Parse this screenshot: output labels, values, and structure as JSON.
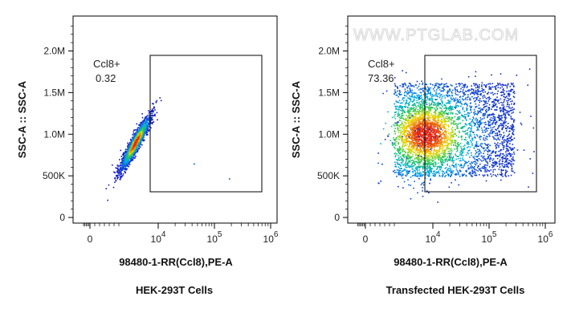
{
  "watermark": "WWW.PTGLAB.COM",
  "chart_data": [
    {
      "type": "scatter",
      "title": "HEK-293T Cells",
      "xlabel": "98480-1-RR(Ccl8),PE-A",
      "ylabel": "SSC-A :: SSC-A",
      "x_scale": "biexponential",
      "x_ticks": [
        {
          "base": "0",
          "exp": ""
        },
        {
          "base": "10",
          "exp": "4"
        },
        {
          "base": "10",
          "exp": "5"
        },
        {
          "base": "10",
          "exp": "6"
        }
      ],
      "y_ticks": [
        "0",
        "500K",
        "1.0M",
        "1.5M",
        "2.0M"
      ],
      "ylim": [
        0,
        2400000
      ],
      "gate": {
        "name": "Ccl8+",
        "value": "0.32",
        "x_range": [
          8000,
          800000
        ],
        "y_range": [
          300000,
          1950000
        ]
      },
      "population": {
        "x_center": 3000,
        "y_center": 900000,
        "y_spread": 450000
      }
    },
    {
      "type": "scatter",
      "title": "Transfected HEK-293T Cells",
      "xlabel": "98480-1-RR(Ccl8),PE-A",
      "ylabel": "SSC-A :: SSC-A",
      "x_scale": "biexponential",
      "x_ticks": [
        {
          "base": "0",
          "exp": ""
        },
        {
          "base": "10",
          "exp": "4"
        },
        {
          "base": "10",
          "exp": "5"
        },
        {
          "base": "10",
          "exp": "6"
        }
      ],
      "y_ticks": [
        "0",
        "500K",
        "1.0M",
        "1.5M",
        "2.0M"
      ],
      "ylim": [
        0,
        2400000
      ],
      "gate": {
        "name": "Ccl8+",
        "value": "73.36",
        "x_range": [
          8000,
          800000
        ],
        "y_range": [
          300000,
          1950000
        ]
      },
      "population": {
        "x_range": [
          800,
          500000
        ],
        "y_range": [
          500000,
          1600000
        ]
      }
    }
  ]
}
